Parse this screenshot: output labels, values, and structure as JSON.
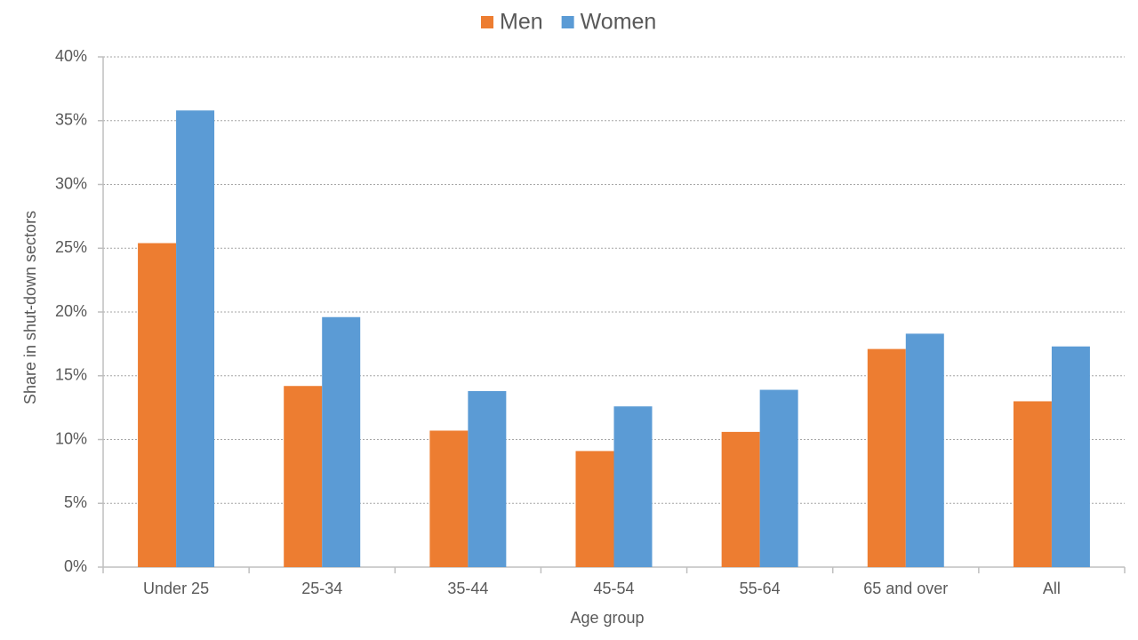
{
  "chart_data": {
    "type": "bar",
    "x_label": "Age group",
    "y_label": "Share in shut-down sectors",
    "categories": [
      "Under 25",
      "25-34",
      "35-44",
      "45-54",
      "55-64",
      "65 and over",
      "All"
    ],
    "series": [
      {
        "name": "Men",
        "color": "#ED7D31",
        "values": [
          25.4,
          14.2,
          10.7,
          9.1,
          10.6,
          17.1,
          13.0
        ]
      },
      {
        "name": "Women",
        "color": "#5B9BD5",
        "values": [
          35.8,
          19.6,
          13.8,
          12.6,
          13.9,
          18.3,
          17.3
        ]
      }
    ],
    "ylim": [
      0,
      40
    ],
    "yticks": [
      {
        "value": 0,
        "label": "0%"
      },
      {
        "value": 5,
        "label": "5%"
      },
      {
        "value": 10,
        "label": "10%"
      },
      {
        "value": 15,
        "label": "15%"
      },
      {
        "value": 20,
        "label": "20%"
      },
      {
        "value": 25,
        "label": "25%"
      },
      {
        "value": 30,
        "label": "30%"
      },
      {
        "value": 35,
        "label": "35%"
      },
      {
        "value": 40,
        "label": "40%"
      }
    ],
    "grid": true,
    "legend": "top"
  }
}
